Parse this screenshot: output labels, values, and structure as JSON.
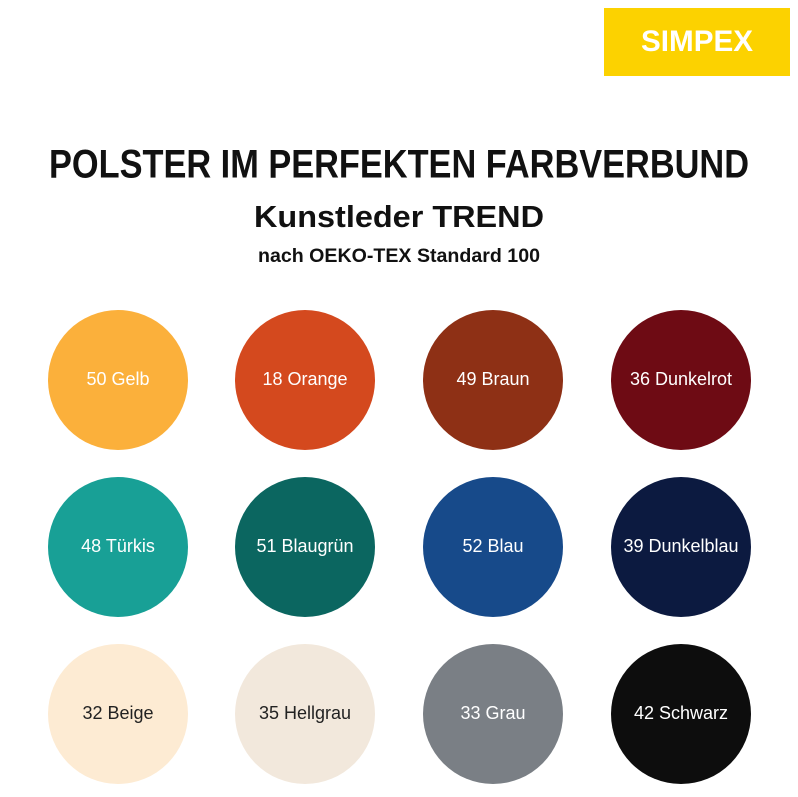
{
  "header": {
    "logo": "SIMPEX",
    "title": "POLSTER IM PERFEKTEN FARBVERBUND",
    "subtitle": "Kunstleder TREND",
    "note": "nach OEKO-TEX Standard 100"
  },
  "swatches": [
    {
      "label": "50 Gelb",
      "color": "#fbb03b"
    },
    {
      "label": "18 Orange",
      "color": "#d4491e"
    },
    {
      "label": "49 Braun",
      "color": "#8e3015"
    },
    {
      "label": "36 Dunkelrot",
      "color": "#6e0b14"
    },
    {
      "label": "48 Türkis",
      "color": "#18a096"
    },
    {
      "label": "51 Blaugrün",
      "color": "#0b6660"
    },
    {
      "label": "52 Blau",
      "color": "#174a8a"
    },
    {
      "label": "39 Dunkelblau",
      "color": "#0c1a40"
    },
    {
      "label": "32 Beige",
      "color": "#fdebd3"
    },
    {
      "label": "35 Hellgrau",
      "color": "#f2e8dc"
    },
    {
      "label": "33 Grau",
      "color": "#7a7f85"
    },
    {
      "label": "42 Schwarz",
      "color": "#0d0d0d"
    }
  ]
}
